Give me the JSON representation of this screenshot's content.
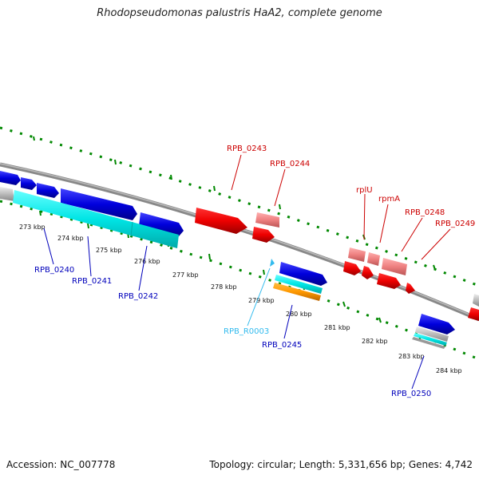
{
  "title": "Rhodopseudomonas palustris HaA2, complete genome",
  "footer": {
    "accession": "Accession: NC_007778",
    "summary": "Topology: circular; Length: 5,331,656 bp; Genes: 4,742"
  },
  "colors": {
    "cds_forward": "#0000ee",
    "cds_reverse": "#ee0000",
    "rrna_or_trna": "#00dddd",
    "misc_feature": "#ff9900",
    "backbone": "#888888",
    "tick": "#008800"
  },
  "scale": {
    "labels": [
      "273 kbp",
      "274 kbp",
      "275 kbp",
      "276 kbp",
      "277 kbp",
      "278 kbp",
      "279 kbp",
      "280 kbp",
      "281 kbp",
      "282 kbp",
      "283 kbp",
      "284 kbp"
    ]
  },
  "genes": [
    {
      "id": "RPB_0240",
      "strand": "forward",
      "color": "#0000bb"
    },
    {
      "id": "RPB_0241",
      "strand": "forward",
      "color": "#0000bb"
    },
    {
      "id": "RPB_0242",
      "strand": "forward",
      "color": "#0000bb"
    },
    {
      "id": "RPB_0243",
      "strand": "reverse",
      "color": "#cc0000"
    },
    {
      "id": "RPB_0244",
      "strand": "reverse",
      "color": "#cc0000"
    },
    {
      "id": "RPB_R0003",
      "strand": "forward",
      "color": "#33bbee"
    },
    {
      "id": "RPB_0245",
      "strand": "forward",
      "color": "#0000bb"
    },
    {
      "id": "rplU",
      "strand": "reverse",
      "color": "#cc0000"
    },
    {
      "id": "rpmA",
      "strand": "reverse",
      "color": "#cc0000"
    },
    {
      "id": "RPB_0248",
      "strand": "reverse",
      "color": "#cc0000"
    },
    {
      "id": "RPB_0249",
      "strand": "reverse",
      "color": "#cc0000"
    },
    {
      "id": "RPB_0250",
      "strand": "forward",
      "color": "#0000bb"
    }
  ]
}
